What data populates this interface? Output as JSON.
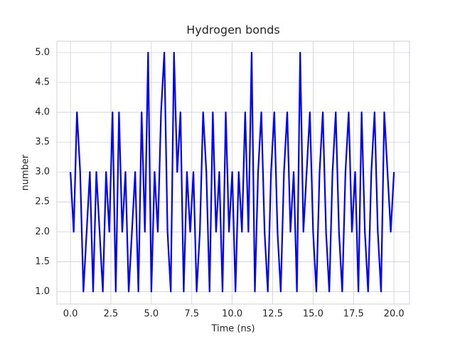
{
  "chart_data": {
    "type": "line",
    "title": "Hydrogen bonds",
    "x_label": "Time (ns)",
    "y_label": "number",
    "color": "#0000ff",
    "grid": true,
    "x": [
      0,
      0.2,
      0.4,
      0.6,
      0.8,
      1,
      1.2,
      1.4,
      1.6,
      1.8,
      2,
      2.2,
      2.4,
      2.6,
      2.8,
      3,
      3.2,
      3.4,
      3.6,
      3.8,
      4,
      4.2,
      4.4,
      4.6,
      4.8,
      5,
      5.2,
      5.4,
      5.6,
      5.8,
      6,
      6.2,
      6.4,
      6.6,
      6.8,
      7,
      7.2,
      7.4,
      7.6,
      7.8,
      8,
      8.2,
      8.4,
      8.6,
      8.8,
      9,
      9.2,
      9.4,
      9.6,
      9.8,
      10,
      10.2,
      10.4,
      10.6,
      10.8,
      11,
      11.2,
      11.4,
      11.6,
      11.8,
      12,
      12.2,
      12.4,
      12.6,
      12.8,
      13,
      13.2,
      13.4,
      13.6,
      13.8,
      14,
      14.2,
      14.4,
      14.6,
      14.8,
      15,
      15.2,
      15.4,
      15.6,
      15.8,
      16,
      16.2,
      16.4,
      16.6,
      16.8,
      17,
      17.2,
      17.4,
      17.6,
      17.8,
      18,
      18.2,
      18.4,
      18.6,
      18.8,
      19,
      19.2,
      19.4,
      19.6,
      19.8,
      20
    ],
    "values": [
      3,
      2,
      4,
      3,
      1,
      2,
      3,
      1,
      3,
      2,
      1,
      3,
      2,
      4,
      1,
      4,
      2,
      3,
      1,
      2,
      3,
      1,
      4,
      2,
      5,
      1,
      3,
      2,
      4,
      5,
      2,
      1,
      5,
      3,
      4,
      1,
      3,
      2,
      3,
      1,
      2,
      4,
      3,
      1,
      4,
      2,
      3,
      1,
      4,
      2,
      3,
      1,
      3,
      2,
      4,
      2,
      5,
      1,
      3,
      4,
      2,
      1,
      3,
      4,
      2,
      1,
      3,
      4,
      2,
      3,
      1,
      5,
      2,
      3,
      4,
      2,
      1,
      3,
      4,
      2,
      1,
      3,
      4,
      2,
      1,
      3,
      4,
      2,
      3,
      1,
      4,
      2,
      1,
      3,
      4,
      2,
      1,
      4,
      3,
      2,
      3
    ],
    "xlim": [
      -0.84,
      20.96
    ],
    "ylim": [
      0.79,
      5.19
    ],
    "xticks": [
      {
        "value": 0,
        "label": "0.0"
      },
      {
        "value": 2.5,
        "label": "2.5"
      },
      {
        "value": 5,
        "label": "5.0"
      },
      {
        "value": 7.5,
        "label": "7.5"
      },
      {
        "value": 10,
        "label": "10.0"
      },
      {
        "value": 12.5,
        "label": "12.5"
      },
      {
        "value": 15,
        "label": "15.0"
      },
      {
        "value": 17.5,
        "label": "17.5"
      },
      {
        "value": 20,
        "label": "20.0"
      }
    ],
    "yticks": [
      {
        "value": 1,
        "label": "1.0"
      },
      {
        "value": 1.5,
        "label": "1.5"
      },
      {
        "value": 2,
        "label": "2.0"
      },
      {
        "value": 2.5,
        "label": "2.5"
      },
      {
        "value": 3,
        "label": "3.0"
      },
      {
        "value": 3.5,
        "label": "3.5"
      },
      {
        "value": 4,
        "label": "4.0"
      },
      {
        "value": 4.5,
        "label": "4.5"
      },
      {
        "value": 5,
        "label": "5.0"
      }
    ]
  }
}
